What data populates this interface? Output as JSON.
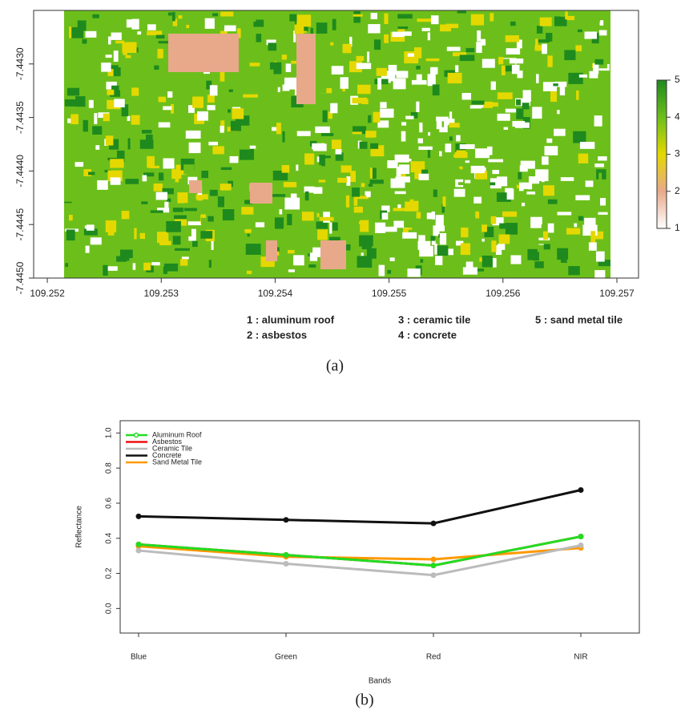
{
  "chart_data": [
    {
      "type": "raster",
      "xlim": [
        109.25188,
        109.25719
      ],
      "xticks": [
        109.252,
        109.253,
        109.254,
        109.255,
        109.256,
        109.257
      ],
      "ylim": [
        -7.445,
        -7.4425
      ],
      "yticks": [
        {
          "value": -7.443,
          "label": "-7.4430"
        },
        {
          "value": -7.4435,
          "label": "-7.4435"
        },
        {
          "value": -7.444,
          "label": "-7.4440"
        },
        {
          "value": -7.4445,
          "label": "-7.4445"
        },
        {
          "value": -7.445,
          "label": "-7.4450"
        }
      ],
      "colorbar": {
        "lim": [
          1,
          5
        ],
        "ticks": [
          1,
          2,
          3,
          4,
          5
        ],
        "colors": [
          "#ffffff",
          "#e8a98a",
          "#e4d800",
          "#6cbf1a",
          "#1e8a1e"
        ]
      },
      "notes": [
        "1 : aluminum roof",
        "2 : asbestos",
        "3 : ceramic tile",
        "4 : concrete",
        "5 : sand metal tile"
      ],
      "caption": "(a)"
    },
    {
      "type": "line",
      "categories": [
        "Blue",
        "Green",
        "Red",
        "NIR"
      ],
      "x_label": "Bands",
      "y_label": "Reflectance",
      "ylim": [
        -0.14,
        1.07
      ],
      "yticks": [
        {
          "value": 0,
          "label": "0.0"
        },
        0.2,
        0.4,
        0.6,
        0.8,
        {
          "value": 1,
          "label": "1.0"
        }
      ],
      "legend": "top-left",
      "series": [
        {
          "name": "Aluminum Roof",
          "color": "#22dd22",
          "values": [
            0.365,
            0.305,
            0.245,
            0.41
          ]
        },
        {
          "name": "Asbestos",
          "color": "#ee1111",
          "values": [
            0.365,
            0.305,
            0.245,
            0.41
          ]
        },
        {
          "name": "Ceramic Tile",
          "color": "#bbbbbb",
          "values": [
            0.33,
            0.255,
            0.19,
            0.36
          ]
        },
        {
          "name": "Concrete",
          "color": "#111111",
          "values": [
            0.525,
            0.505,
            0.485,
            0.675
          ]
        },
        {
          "name": "Sand Metal Tile",
          "color": "#ff9900",
          "values": [
            0.355,
            0.295,
            0.28,
            0.345
          ]
        }
      ],
      "caption": "(b)"
    }
  ]
}
